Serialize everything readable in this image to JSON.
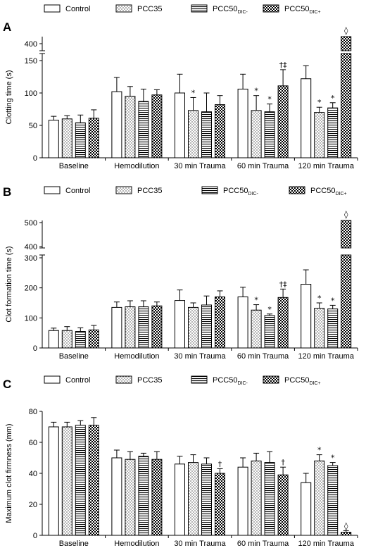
{
  "legend": [
    {
      "name": "Control",
      "pattern": "white"
    },
    {
      "name": "PCC35",
      "pattern": "dots"
    },
    {
      "name": "PCC50",
      "sub": "DIC-",
      "pattern": "hlines"
    },
    {
      "name": "PCC50",
      "sub": "DIC+",
      "pattern": "check"
    }
  ],
  "chart_data": [
    {
      "panel": "A",
      "type": "bar",
      "ylabel": "Clotting time (s)",
      "categories": [
        "Baseline",
        "Hemodilution",
        "30 min Trauma",
        "60 min Trauma",
        "120 min Trauma"
      ],
      "ylim": [
        0,
        150
      ],
      "yticks": [
        "0",
        "50",
        "100",
        "150"
      ],
      "break": {
        "upper_tick": "400"
      },
      "series": [
        {
          "values": [
            58,
            102,
            100,
            106,
            122
          ],
          "errors": [
            6,
            22,
            29,
            23,
            20
          ]
        },
        {
          "values": [
            60,
            95,
            73,
            73,
            70
          ],
          "errors": [
            5,
            15,
            20,
            23,
            8
          ]
        },
        {
          "values": [
            54,
            87,
            71,
            71,
            77
          ],
          "errors": [
            12,
            19,
            29,
            12,
            8
          ]
        },
        {
          "values": [
            61,
            97,
            82,
            111,
            410
          ],
          "errors": [
            13,
            8,
            14,
            25,
            15
          ]
        }
      ],
      "annotations": [
        {
          "category": 2,
          "series": 1,
          "text": "*"
        },
        {
          "category": 3,
          "series": 1,
          "text": "*"
        },
        {
          "category": 3,
          "series": 2,
          "text": "*"
        },
        {
          "category": 3,
          "series": 3,
          "text": "†‡"
        },
        {
          "category": 4,
          "series": 1,
          "text": "*"
        },
        {
          "category": 4,
          "series": 2,
          "text": "*"
        },
        {
          "category": 4,
          "series": 3,
          "text": "◊"
        }
      ]
    },
    {
      "panel": "B",
      "type": "bar",
      "ylabel": "Clot formation time (s)",
      "categories": [
        "Baseline",
        "Hemodilution",
        "30 min Trauma",
        "60 min Trauma",
        "120 min Trauma"
      ],
      "ylim": [
        0,
        300
      ],
      "yticks": [
        "0",
        "100",
        "200",
        "300"
      ],
      "break": {
        "upper_ticks": [
          "400",
          "500"
        ]
      },
      "series": [
        {
          "values": [
            58,
            135,
            158,
            170,
            212
          ],
          "errors": [
            8,
            18,
            35,
            32,
            48
          ]
        },
        {
          "values": [
            58,
            137,
            135,
            126,
            132
          ],
          "errors": [
            13,
            20,
            15,
            18,
            18
          ]
        },
        {
          "values": [
            55,
            137,
            143,
            108,
            130
          ],
          "errors": [
            12,
            20,
            30,
            5,
            12
          ]
        },
        {
          "values": [
            60,
            140,
            170,
            168,
            500
          ],
          "errors": [
            15,
            13,
            20,
            28,
            10
          ]
        }
      ],
      "annotations": [
        {
          "category": 3,
          "series": 1,
          "text": "*"
        },
        {
          "category": 3,
          "series": 2,
          "text": "*"
        },
        {
          "category": 3,
          "series": 3,
          "text": "†‡"
        },
        {
          "category": 4,
          "series": 1,
          "text": "*"
        },
        {
          "category": 4,
          "series": 2,
          "text": "*"
        },
        {
          "category": 4,
          "series": 3,
          "text": "◊"
        }
      ]
    },
    {
      "panel": "C",
      "type": "bar",
      "ylabel": "Maximum clot firmness (mm)",
      "categories": [
        "Baseline",
        "Hemodilution",
        "30 min Trauma",
        "60 min Trauma",
        "120 min Trauma"
      ],
      "ylim": [
        0,
        80
      ],
      "yticks": [
        "0",
        "20",
        "40",
        "60",
        "80"
      ],
      "series": [
        {
          "values": [
            70,
            50,
            46,
            44,
            34
          ],
          "errors": [
            3,
            5,
            5,
            6,
            6
          ]
        },
        {
          "values": [
            70,
            49,
            47,
            48,
            48
          ],
          "errors": [
            3,
            5,
            5,
            5,
            4
          ]
        },
        {
          "values": [
            71,
            51,
            46,
            47,
            45
          ],
          "errors": [
            3,
            2,
            4,
            7,
            2
          ]
        },
        {
          "values": [
            71,
            49,
            40,
            39,
            2
          ],
          "errors": [
            5,
            5,
            3,
            5,
            1
          ]
        }
      ],
      "annotations": [
        {
          "category": 2,
          "series": 3,
          "text": "†"
        },
        {
          "category": 3,
          "series": 3,
          "text": "†"
        },
        {
          "category": 4,
          "series": 1,
          "text": "*"
        },
        {
          "category": 4,
          "series": 2,
          "text": "*"
        },
        {
          "category": 4,
          "series": 3,
          "text": "◊"
        }
      ]
    }
  ]
}
